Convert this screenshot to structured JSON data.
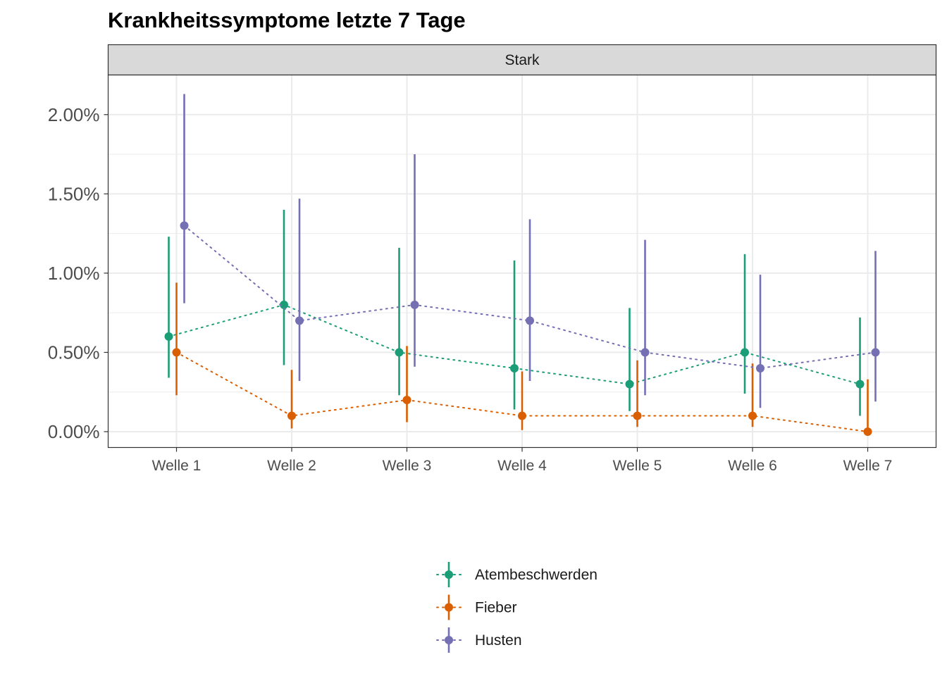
{
  "chart_data": {
    "type": "scatter",
    "title": "Krankheitssymptome letzte 7 Tage",
    "facet": "Stark",
    "xlabel": "",
    "ylabel": "",
    "categories": [
      "Welle 1",
      "Welle 2",
      "Welle 3",
      "Welle 4",
      "Welle 5",
      "Welle 6",
      "Welle 7"
    ],
    "y_ticks": [
      0,
      0.5,
      1.0,
      1.5,
      2.0
    ],
    "y_tick_labels": [
      "0.00%",
      "0.50%",
      "1.00%",
      "1.50%",
      "2.00%"
    ],
    "ylim": [
      -0.1,
      2.25
    ],
    "grid": true,
    "legend_position": "bottom",
    "series": [
      {
        "name": "Atembeschwerden",
        "color": "#1B9E77",
        "values": [
          0.6,
          0.8,
          0.5,
          0.4,
          0.3,
          0.5,
          0.3
        ],
        "lower": [
          0.34,
          0.42,
          0.23,
          0.14,
          0.13,
          0.24,
          0.1
        ],
        "upper": [
          1.23,
          1.4,
          1.16,
          1.08,
          0.78,
          1.12,
          0.72
        ]
      },
      {
        "name": "Fieber",
        "color": "#D95F02",
        "values": [
          0.5,
          0.1,
          0.2,
          0.1,
          0.1,
          0.1,
          0.0
        ],
        "lower": [
          0.23,
          0.02,
          0.06,
          0.01,
          0.03,
          0.03,
          0.0
        ],
        "upper": [
          0.94,
          0.39,
          0.54,
          0.38,
          0.45,
          0.43,
          0.33
        ]
      },
      {
        "name": "Husten",
        "color": "#7570B3",
        "values": [
          1.3,
          0.7,
          0.8,
          0.7,
          0.5,
          0.4,
          0.5
        ],
        "lower": [
          0.81,
          0.32,
          0.41,
          0.32,
          0.23,
          0.15,
          0.19
        ],
        "upper": [
          2.13,
          1.47,
          1.75,
          1.34,
          1.21,
          0.99,
          1.14
        ]
      }
    ]
  }
}
